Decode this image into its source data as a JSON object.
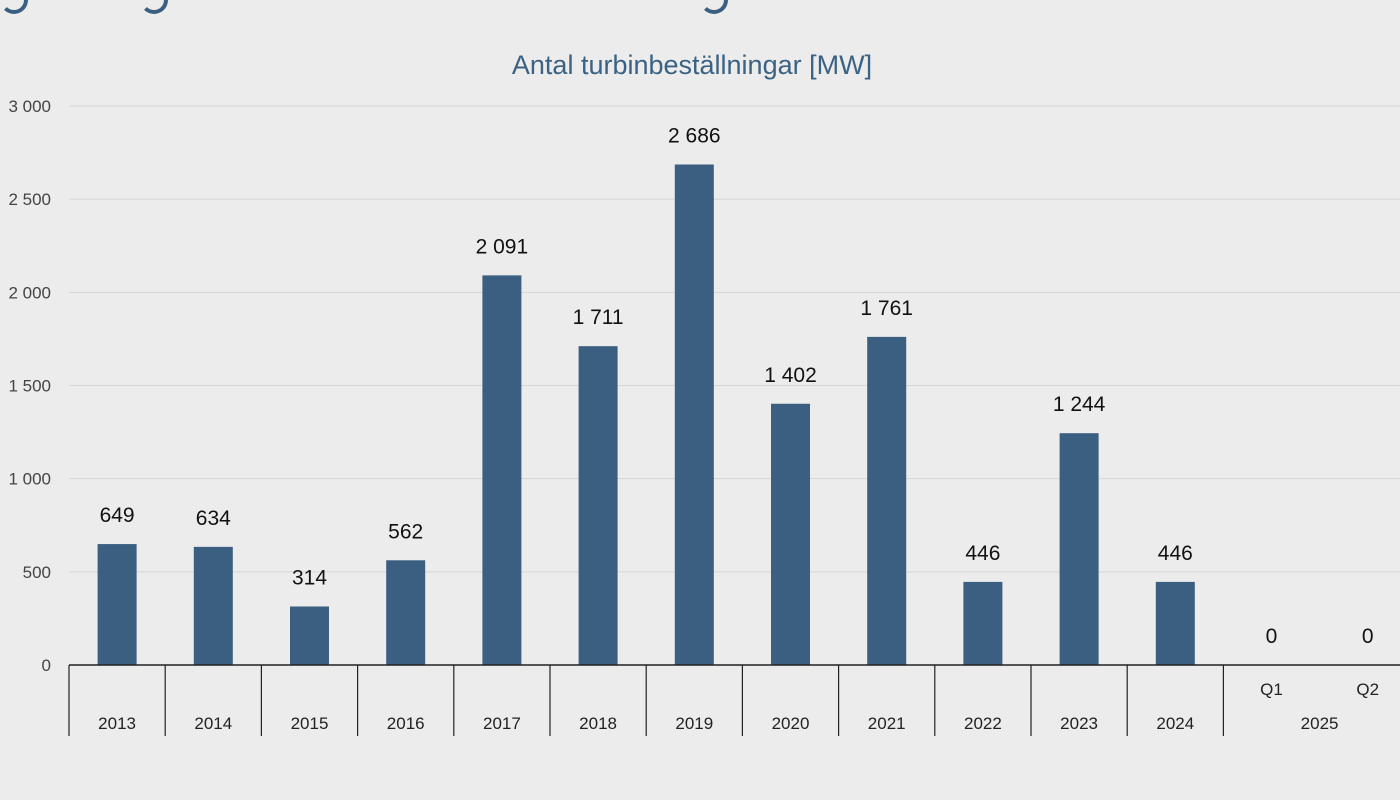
{
  "chart_data": {
    "type": "bar",
    "title": "Antal turbinbeställningar [MW]",
    "ylim": [
      0,
      3000
    ],
    "yticks": [
      "0",
      "500",
      "1 000",
      "1 500",
      "2 000",
      "2 500",
      "3 000"
    ],
    "ytick_values": [
      0,
      500,
      1000,
      1500,
      2000,
      2500,
      3000
    ],
    "grid": true,
    "categories": [
      "2013",
      "2014",
      "2015",
      "2016",
      "2017",
      "2018",
      "2019",
      "2020",
      "2021",
      "2022",
      "2023",
      "2024",
      "Q1",
      "Q2"
    ],
    "category_groups": [
      {
        "label": "2025",
        "members": [
          "Q1",
          "Q2"
        ]
      }
    ],
    "values": [
      649,
      634,
      314,
      562,
      2091,
      1711,
      2686,
      1402,
      1761,
      446,
      1244,
      446,
      0,
      0
    ],
    "value_labels": [
      "649",
      "634",
      "314",
      "562",
      "2 091",
      "1 711",
      "2 686",
      "1 402",
      "1 761",
      "446",
      "1 244",
      "446",
      "0",
      "0"
    ],
    "bar_color": "#3a5f80",
    "title_color": "#3a6284"
  }
}
